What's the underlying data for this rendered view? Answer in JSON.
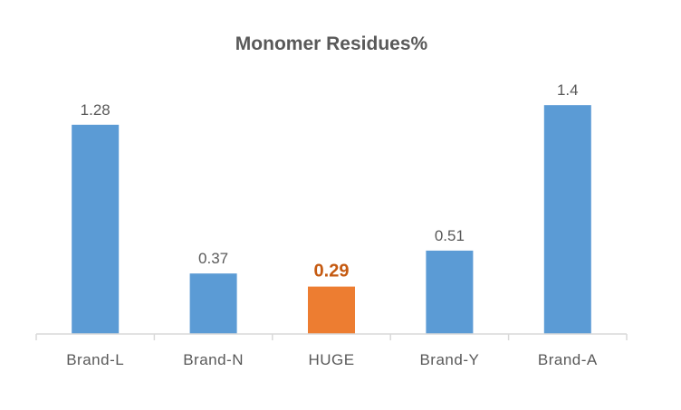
{
  "chart_data": {
    "type": "bar",
    "title": "Monomer Residues%",
    "categories": [
      "Brand-L",
      "Brand-N",
      "HUGE",
      "Brand-Y",
      "Brand-A"
    ],
    "values": [
      1.28,
      0.37,
      0.29,
      0.51,
      1.4
    ],
    "data_labels": [
      "1.28",
      "0.37",
      "0.29",
      "0.51",
      "1.4"
    ],
    "highlight_index": 2,
    "xlabel": "",
    "ylabel": "",
    "ylim": [
      0,
      1.4
    ],
    "grid": false,
    "legend": "none",
    "colors": {
      "bar": "#5B9BD5",
      "highlight_bar": "#ED7D31",
      "highlight_label": "#C55A11",
      "label": "#595959",
      "axis": "#D9D9D9"
    }
  }
}
